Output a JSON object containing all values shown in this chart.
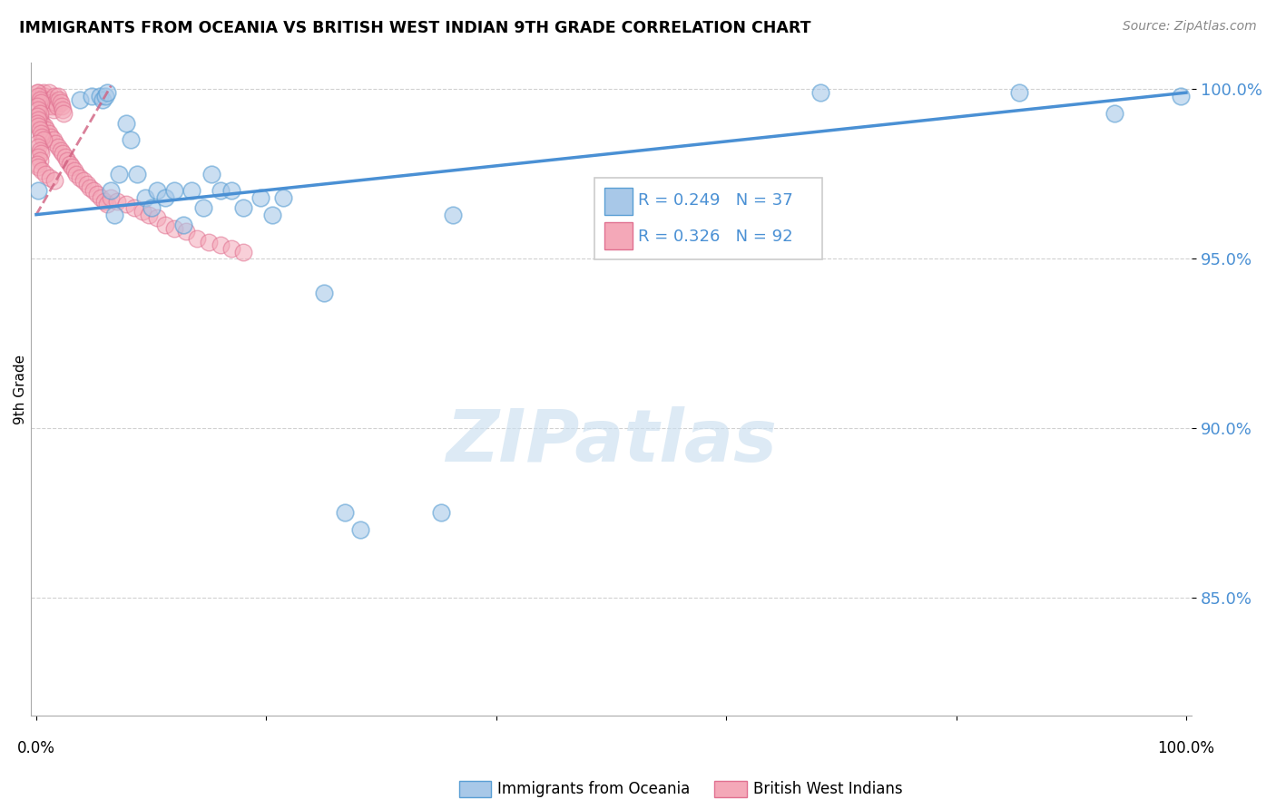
{
  "title": "IMMIGRANTS FROM OCEANIA VS BRITISH WEST INDIAN 9TH GRADE CORRELATION CHART",
  "source": "Source: ZipAtlas.com",
  "ylabel": "9th Grade",
  "color_oceania_fill": "#a8c8e8",
  "color_oceania_edge": "#5a9fd4",
  "color_bwi_fill": "#f4a8b8",
  "color_bwi_edge": "#e07090",
  "color_line_oceania": "#4a90d4",
  "color_line_bwi": "#d06080",
  "legend_text_color": "#4a90d4",
  "ytick_color": "#4a90d4",
  "oceania_x": [
    0.002,
    0.038,
    0.048,
    0.055,
    0.058,
    0.06,
    0.062,
    0.065,
    0.068,
    0.072,
    0.078,
    0.082,
    0.088,
    0.095,
    0.1,
    0.105,
    0.112,
    0.12,
    0.128,
    0.135,
    0.145,
    0.152,
    0.16,
    0.17,
    0.18,
    0.195,
    0.205,
    0.215,
    0.25,
    0.268,
    0.282,
    0.352,
    0.362,
    0.682,
    0.855,
    0.938,
    0.995
  ],
  "oceania_y": [
    0.97,
    0.997,
    0.998,
    0.998,
    0.997,
    0.998,
    0.999,
    0.97,
    0.963,
    0.975,
    0.99,
    0.985,
    0.975,
    0.968,
    0.965,
    0.97,
    0.968,
    0.97,
    0.96,
    0.97,
    0.965,
    0.975,
    0.97,
    0.97,
    0.965,
    0.968,
    0.963,
    0.968,
    0.94,
    0.875,
    0.87,
    0.875,
    0.963,
    0.999,
    0.999,
    0.993,
    0.998
  ],
  "bwi_x": [
    0.002,
    0.003,
    0.004,
    0.005,
    0.006,
    0.007,
    0.008,
    0.009,
    0.01,
    0.011,
    0.012,
    0.013,
    0.014,
    0.015,
    0.016,
    0.017,
    0.018,
    0.019,
    0.02,
    0.021,
    0.022,
    0.023,
    0.024,
    0.002,
    0.003,
    0.005,
    0.007,
    0.009,
    0.011,
    0.013,
    0.015,
    0.017,
    0.019,
    0.021,
    0.023,
    0.025,
    0.027,
    0.029,
    0.031,
    0.033,
    0.035,
    0.038,
    0.041,
    0.044,
    0.047,
    0.05,
    0.053,
    0.056,
    0.059,
    0.062,
    0.001,
    0.002,
    0.003,
    0.004,
    0.001,
    0.002,
    0.003,
    0.001,
    0.002,
    0.001,
    0.002,
    0.003,
    0.004,
    0.005,
    0.006,
    0.001,
    0.002,
    0.003,
    0.004,
    0.002,
    0.003,
    0.001,
    0.002,
    0.065,
    0.07,
    0.078,
    0.085,
    0.092,
    0.098,
    0.105,
    0.112,
    0.12,
    0.13,
    0.14,
    0.15,
    0.16,
    0.17,
    0.18,
    0.005,
    0.008,
    0.012,
    0.016
  ],
  "bwi_y": [
    0.999,
    0.998,
    0.997,
    0.996,
    0.999,
    0.998,
    0.997,
    0.996,
    0.995,
    0.999,
    0.997,
    0.996,
    0.995,
    0.994,
    0.998,
    0.996,
    0.995,
    0.998,
    0.997,
    0.996,
    0.995,
    0.994,
    0.993,
    0.992,
    0.991,
    0.99,
    0.989,
    0.988,
    0.987,
    0.986,
    0.985,
    0.984,
    0.983,
    0.982,
    0.981,
    0.98,
    0.979,
    0.978,
    0.977,
    0.976,
    0.975,
    0.974,
    0.973,
    0.972,
    0.971,
    0.97,
    0.969,
    0.968,
    0.967,
    0.966,
    0.999,
    0.998,
    0.997,
    0.996,
    0.995,
    0.994,
    0.993,
    0.992,
    0.991,
    0.99,
    0.989,
    0.988,
    0.987,
    0.986,
    0.985,
    0.984,
    0.983,
    0.982,
    0.981,
    0.98,
    0.979,
    0.978,
    0.977,
    0.968,
    0.967,
    0.966,
    0.965,
    0.964,
    0.963,
    0.962,
    0.96,
    0.959,
    0.958,
    0.956,
    0.955,
    0.954,
    0.953,
    0.952,
    0.976,
    0.975,
    0.974,
    0.973
  ],
  "oceania_line_x": [
    0.0,
    1.0
  ],
  "oceania_line_y": [
    0.963,
    0.999
  ],
  "bwi_line_x": [
    0.0,
    0.065
  ],
  "bwi_line_y": [
    0.963,
    1.001
  ],
  "yticks": [
    0.85,
    0.9,
    0.95,
    1.0
  ],
  "ytick_labels": [
    "85.0%",
    "90.0%",
    "95.0%",
    "100.0%"
  ],
  "ylim": [
    0.815,
    1.008
  ],
  "xlim": [
    -0.005,
    1.005
  ],
  "marker_size": 180,
  "legend_label1": "Immigrants from Oceania",
  "legend_label2": "British West Indians"
}
